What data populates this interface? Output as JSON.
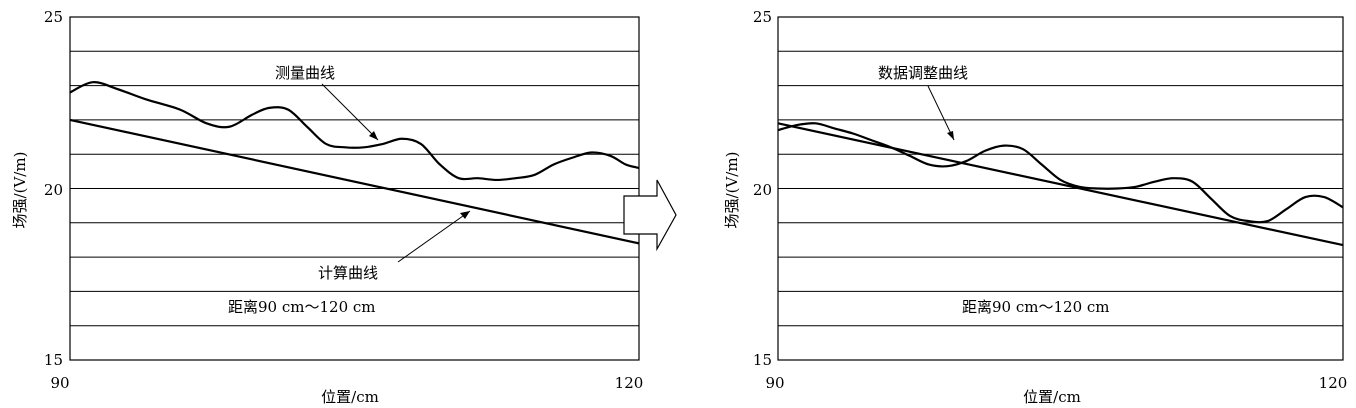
{
  "chart_data": [
    {
      "type": "line",
      "xlabel": "位置/cm",
      "ylabel": "场强/(V/m)",
      "xlim": [
        90,
        120
      ],
      "ylim": [
        15,
        25
      ],
      "x_ticks": [
        "90",
        "120"
      ],
      "y_ticks": [
        "25",
        "20",
        "15"
      ],
      "grid_y": [
        15,
        16,
        17,
        18,
        19,
        20,
        21,
        22,
        23,
        24,
        25
      ],
      "series": [
        {
          "name": "测量曲线",
          "x": [
            90,
            91.2,
            92.5,
            94,
            95.8,
            97.2,
            98.4,
            99.6,
            100.5,
            101.5,
            102.5,
            103.5,
            104.5,
            105.5,
            106.5,
            107.5,
            108.5,
            109.5,
            110.5,
            111.5,
            112.5,
            113.5,
            114.5,
            115.5,
            116.5,
            117.5,
            118.5,
            119.3,
            120
          ],
          "y": [
            22.8,
            23.1,
            22.9,
            22.6,
            22.3,
            21.9,
            21.8,
            22.15,
            22.35,
            22.3,
            21.8,
            21.3,
            21.2,
            21.2,
            21.3,
            21.45,
            21.3,
            20.7,
            20.3,
            20.3,
            20.25,
            20.3,
            20.4,
            20.7,
            20.9,
            21.05,
            20.95,
            20.7,
            20.6
          ]
        },
        {
          "name": "计算曲线",
          "x": [
            90,
            120
          ],
          "y": [
            22.0,
            18.4
          ]
        }
      ],
      "annotations": [
        {
          "text": "测量曲线",
          "points_to_series": "测量曲线"
        },
        {
          "text": "计算曲线",
          "points_to_series": "计算曲线"
        },
        {
          "text": "距离90 cm～120 cm"
        }
      ]
    },
    {
      "type": "line",
      "xlabel": "位置/cm",
      "ylabel": "场强/(V/m)",
      "xlim": [
        90,
        120
      ],
      "ylim": [
        15,
        25
      ],
      "x_ticks": [
        "90",
        "120"
      ],
      "y_ticks": [
        "25",
        "20",
        "15"
      ],
      "grid_y": [
        15,
        16,
        17,
        18,
        19,
        20,
        21,
        22,
        23,
        24,
        25
      ],
      "series": [
        {
          "name": "数据调整曲线",
          "x": [
            90,
            91,
            92,
            93,
            94,
            95,
            96,
            97,
            98,
            99,
            100,
            101,
            102,
            103,
            104,
            105,
            106,
            107,
            108,
            109,
            110,
            111,
            112,
            113,
            114,
            115,
            116,
            117,
            118,
            119,
            120
          ],
          "y": [
            21.7,
            21.85,
            21.9,
            21.75,
            21.6,
            21.4,
            21.2,
            20.95,
            20.7,
            20.65,
            20.8,
            21.1,
            21.25,
            21.15,
            20.7,
            20.25,
            20.05,
            20.0,
            20.0,
            20.05,
            20.2,
            20.3,
            20.2,
            19.7,
            19.2,
            19.05,
            19.05,
            19.4,
            19.75,
            19.75,
            19.45
          ]
        },
        {
          "name": "",
          "x": [
            90,
            120
          ],
          "y": [
            21.9,
            18.35
          ]
        }
      ],
      "annotations": [
        {
          "text": "数据调整曲线",
          "points_to_series": "数据调整曲线"
        },
        {
          "text": "距离90 cm～120 cm"
        }
      ]
    }
  ]
}
